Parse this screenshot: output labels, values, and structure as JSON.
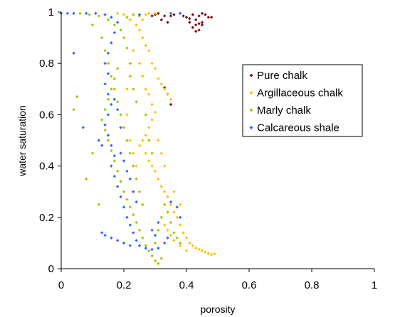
{
  "chart_data": {
    "type": "scatter",
    "xlabel": "porosity",
    "ylabel": "water saturation",
    "xlim": [
      0,
      1
    ],
    "ylim": [
      0,
      1
    ],
    "x_ticks": [
      "0",
      "0.2",
      "0.4",
      "0.6",
      "0.8",
      "1"
    ],
    "y_ticks": [
      "0",
      "0.2",
      "0.4",
      "0.6",
      "0.8",
      "1"
    ],
    "grid": false,
    "legend_position": "upper-right",
    "series": [
      {
        "name": "Pure chalk",
        "color": "#7a0f0f",
        "values": [
          [
            0.38,
            0.995
          ],
          [
            0.39,
            0.985
          ],
          [
            0.4,
            0.98
          ],
          [
            0.41,
            0.975
          ],
          [
            0.42,
            0.99
          ],
          [
            0.43,
            0.97
          ],
          [
            0.44,
            0.985
          ],
          [
            0.45,
            0.96
          ],
          [
            0.46,
            0.99
          ],
          [
            0.47,
            0.98
          ],
          [
            0.43,
            0.95
          ],
          [
            0.42,
            0.94
          ],
          [
            0.44,
            0.93
          ],
          [
            0.45,
            0.95
          ],
          [
            0.41,
            0.96
          ],
          [
            0.36,
            0.99
          ],
          [
            0.35,
            0.985
          ],
          [
            0.33,
            0.985
          ],
          [
            0.32,
            0.97
          ],
          [
            0.34,
            0.96
          ],
          [
            0.3,
            0.99
          ],
          [
            0.29,
            0.985
          ],
          [
            0.31,
            0.995
          ],
          [
            0.45,
            0.995
          ],
          [
            0.48,
            0.98
          ],
          [
            0.44,
            0.955
          ],
          [
            0.43,
            0.925
          ],
          [
            0.33,
            0.705
          ],
          [
            0.34,
            0.68
          ],
          [
            0.35,
            0.64
          ]
        ]
      },
      {
        "name": "Argillaceous chalk",
        "color": "#ffc000",
        "values": [
          [
            0.2,
            0.99
          ],
          [
            0.22,
            0.97
          ],
          [
            0.24,
            0.95
          ],
          [
            0.25,
            0.93
          ],
          [
            0.26,
            0.9
          ],
          [
            0.27,
            0.87
          ],
          [
            0.28,
            0.85
          ],
          [
            0.29,
            0.8
          ],
          [
            0.3,
            0.78
          ],
          [
            0.31,
            0.74
          ],
          [
            0.32,
            0.72
          ],
          [
            0.33,
            0.7
          ],
          [
            0.34,
            0.68
          ],
          [
            0.35,
            0.66
          ],
          [
            0.28,
            0.68
          ],
          [
            0.29,
            0.64
          ],
          [
            0.3,
            0.61
          ],
          [
            0.29,
            0.58
          ],
          [
            0.28,
            0.55
          ],
          [
            0.27,
            0.52
          ],
          [
            0.26,
            0.5
          ],
          [
            0.25,
            0.48
          ],
          [
            0.27,
            0.45
          ],
          [
            0.28,
            0.42
          ],
          [
            0.29,
            0.4
          ],
          [
            0.3,
            0.38
          ],
          [
            0.31,
            0.35
          ],
          [
            0.32,
            0.32
          ],
          [
            0.33,
            0.3
          ],
          [
            0.34,
            0.28
          ],
          [
            0.35,
            0.25
          ],
          [
            0.36,
            0.22
          ],
          [
            0.37,
            0.2
          ],
          [
            0.38,
            0.17
          ],
          [
            0.39,
            0.14
          ],
          [
            0.4,
            0.12
          ],
          [
            0.41,
            0.1
          ],
          [
            0.42,
            0.09
          ],
          [
            0.43,
            0.08
          ],
          [
            0.44,
            0.075
          ],
          [
            0.45,
            0.07
          ],
          [
            0.46,
            0.065
          ],
          [
            0.47,
            0.06
          ],
          [
            0.48,
            0.055
          ],
          [
            0.49,
            0.058
          ],
          [
            0.4,
            0.07
          ],
          [
            0.38,
            0.09
          ],
          [
            0.36,
            0.11
          ],
          [
            0.35,
            0.13
          ],
          [
            0.34,
            0.15
          ],
          [
            0.33,
            0.17
          ],
          [
            0.32,
            0.2
          ],
          [
            0.24,
            0.4
          ],
          [
            0.23,
            0.45
          ],
          [
            0.22,
            0.5
          ],
          [
            0.21,
            0.6
          ],
          [
            0.21,
            0.7
          ],
          [
            0.22,
            0.8
          ],
          [
            0.23,
            0.85
          ],
          [
            0.26,
            0.97
          ],
          [
            0.28,
            0.995
          ],
          [
            0.3,
            0.995
          ],
          [
            0.27,
            0.99
          ],
          [
            0.18,
            0.995
          ],
          [
            0.25,
            0.8
          ],
          [
            0.26,
            0.75
          ],
          [
            0.27,
            0.7
          ],
          [
            0.31,
            0.5
          ],
          [
            0.32,
            0.45
          ],
          [
            0.33,
            0.4
          ],
          [
            0.36,
            0.3
          ],
          [
            0.38,
            0.25
          ]
        ]
      },
      {
        "name": "Marly chalk",
        "color": "#99cc00",
        "values": [
          [
            0.06,
            0.995
          ],
          [
            0.09,
            0.99
          ],
          [
            0.12,
            0.985
          ],
          [
            0.15,
            0.97
          ],
          [
            0.17,
            0.95
          ],
          [
            0.19,
            0.93
          ],
          [
            0.2,
            0.9
          ],
          [
            0.21,
            0.86
          ],
          [
            0.22,
            0.8
          ],
          [
            0.18,
            0.78
          ],
          [
            0.17,
            0.74
          ],
          [
            0.16,
            0.7
          ],
          [
            0.15,
            0.66
          ],
          [
            0.14,
            0.62
          ],
          [
            0.13,
            0.58
          ],
          [
            0.14,
            0.54
          ],
          [
            0.15,
            0.5
          ],
          [
            0.16,
            0.46
          ],
          [
            0.17,
            0.42
          ],
          [
            0.18,
            0.38
          ],
          [
            0.19,
            0.34
          ],
          [
            0.2,
            0.3
          ],
          [
            0.21,
            0.27
          ],
          [
            0.22,
            0.24
          ],
          [
            0.23,
            0.21
          ],
          [
            0.24,
            0.18
          ],
          [
            0.25,
            0.15
          ],
          [
            0.26,
            0.12
          ],
          [
            0.27,
            0.09
          ],
          [
            0.28,
            0.07
          ],
          [
            0.29,
            0.05
          ],
          [
            0.3,
            0.03
          ],
          [
            0.31,
            0.02
          ],
          [
            0.32,
            0.04
          ],
          [
            0.3,
            0.1
          ],
          [
            0.31,
            0.15
          ],
          [
            0.32,
            0.2
          ],
          [
            0.33,
            0.25
          ],
          [
            0.34,
            0.22
          ],
          [
            0.35,
            0.18
          ],
          [
            0.36,
            0.14
          ],
          [
            0.37,
            0.12
          ],
          [
            0.38,
            0.1
          ],
          [
            0.26,
            0.25
          ],
          [
            0.25,
            0.3
          ],
          [
            0.24,
            0.35
          ],
          [
            0.23,
            0.4
          ],
          [
            0.22,
            0.45
          ],
          [
            0.21,
            0.5
          ],
          [
            0.2,
            0.55
          ],
          [
            0.19,
            0.6
          ],
          [
            0.18,
            0.65
          ],
          [
            0.17,
            0.7
          ],
          [
            0.16,
            0.75
          ],
          [
            0.15,
            0.8
          ],
          [
            0.14,
            0.85
          ],
          [
            0.13,
            0.9
          ],
          [
            0.1,
            0.95
          ],
          [
            0.05,
            0.67
          ],
          [
            0.04,
            0.62
          ],
          [
            0.08,
            0.35
          ],
          [
            0.1,
            0.45
          ],
          [
            0.12,
            0.25
          ],
          [
            0.27,
            0.6
          ],
          [
            0.28,
            0.5
          ],
          [
            0.29,
            0.45
          ],
          [
            0.24,
            0.65
          ],
          [
            0.23,
            0.7
          ],
          [
            0.22,
            0.75
          ],
          [
            0.21,
            0.98
          ],
          [
            0.23,
            0.99
          ],
          [
            0.25,
            0.985
          ]
        ]
      },
      {
        "name": "Calcareous shale",
        "color": "#3366ff",
        "values": [
          [
            0.0,
            0.995
          ],
          [
            0.02,
            0.995
          ],
          [
            0.04,
            0.995
          ],
          [
            0.08,
            0.995
          ],
          [
            0.11,
            0.995
          ],
          [
            0.14,
            0.99
          ],
          [
            0.16,
            0.98
          ],
          [
            0.18,
            0.96
          ],
          [
            0.17,
            0.92
          ],
          [
            0.16,
            0.88
          ],
          [
            0.15,
            0.84
          ],
          [
            0.14,
            0.8
          ],
          [
            0.15,
            0.76
          ],
          [
            0.14,
            0.72
          ],
          [
            0.15,
            0.68
          ],
          [
            0.16,
            0.64
          ],
          [
            0.15,
            0.6
          ],
          [
            0.14,
            0.56
          ],
          [
            0.15,
            0.52
          ],
          [
            0.16,
            0.48
          ],
          [
            0.17,
            0.44
          ],
          [
            0.16,
            0.4
          ],
          [
            0.17,
            0.36
          ],
          [
            0.18,
            0.32
          ],
          [
            0.19,
            0.28
          ],
          [
            0.2,
            0.24
          ],
          [
            0.21,
            0.2
          ],
          [
            0.22,
            0.17
          ],
          [
            0.23,
            0.14
          ],
          [
            0.24,
            0.11
          ],
          [
            0.25,
            0.09
          ],
          [
            0.27,
            0.08
          ],
          [
            0.29,
            0.075
          ],
          [
            0.31,
            0.08
          ],
          [
            0.33,
            0.1
          ],
          [
            0.34,
            0.12
          ],
          [
            0.13,
            0.14
          ],
          [
            0.14,
            0.13
          ],
          [
            0.16,
            0.12
          ],
          [
            0.18,
            0.11
          ],
          [
            0.2,
            0.1
          ],
          [
            0.22,
            0.09
          ],
          [
            0.19,
            0.45
          ],
          [
            0.2,
            0.42
          ],
          [
            0.21,
            0.38
          ],
          [
            0.22,
            0.35
          ],
          [
            0.23,
            0.3
          ],
          [
            0.24,
            0.26
          ],
          [
            0.13,
            0.48
          ],
          [
            0.12,
            0.5
          ],
          [
            0.04,
            0.84
          ],
          [
            0.07,
            0.55
          ],
          [
            0.19,
            0.55
          ],
          [
            0.18,
            0.62
          ],
          [
            0.17,
            0.66
          ],
          [
            0.29,
            0.15
          ],
          [
            0.3,
            0.13
          ],
          [
            0.31,
            0.18
          ],
          [
            0.35,
            0.26
          ],
          [
            0.37,
            0.24
          ],
          [
            0.38,
            0.2
          ],
          [
            0.25,
            0.99
          ],
          [
            0.35,
            0.995
          ],
          [
            0.38,
            0.995
          ]
        ]
      }
    ]
  }
}
